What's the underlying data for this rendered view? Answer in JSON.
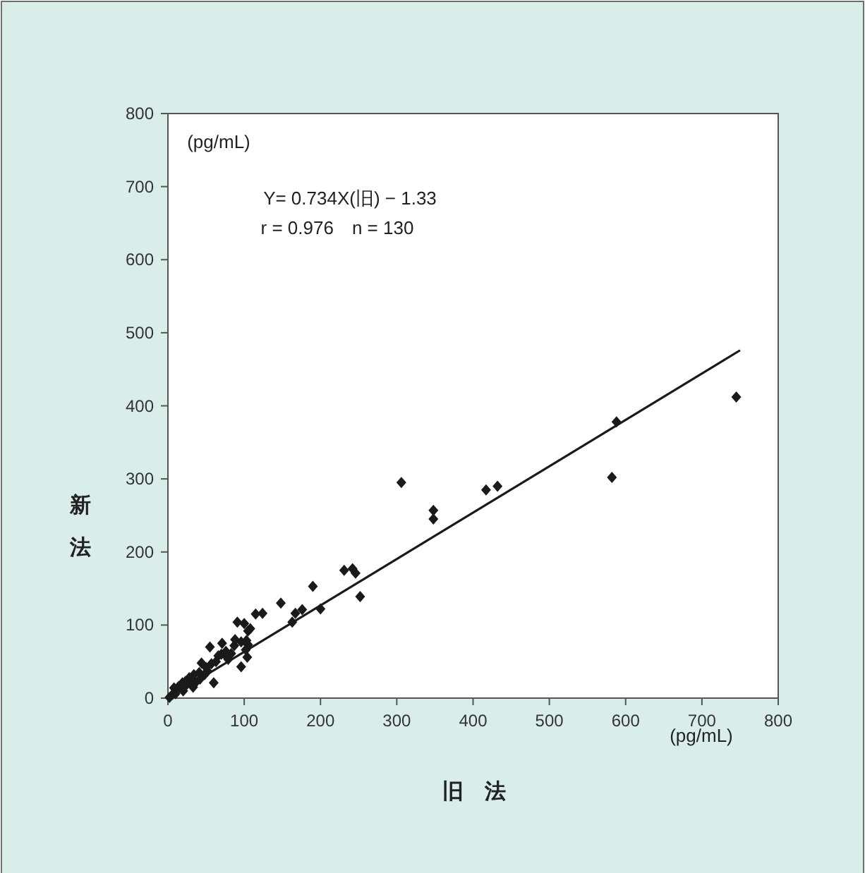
{
  "chart_data": {
    "type": "scatter",
    "xlabel": "旧　法",
    "ylabel": "新法",
    "annotations": [
      "(pg/mL)",
      "(pg/mL)",
      "Y= 0.734X(旧) − 1.33",
      "r = 0.976　n = 130"
    ],
    "xlim": [
      0,
      800
    ],
    "ylim": [
      0,
      800
    ],
    "xticks": [
      0,
      100,
      200,
      300,
      400,
      500,
      600,
      700,
      800
    ],
    "yticks": [
      0,
      100,
      200,
      300,
      400,
      500,
      600,
      700,
      800
    ],
    "marker": "diamond",
    "grid": false,
    "series": [
      {
        "color": "#1a1a1a",
        "x": [
          745,
          588,
          582,
          432,
          417,
          348,
          348,
          306,
          252,
          231,
          242,
          246,
          200,
          190,
          176,
          167,
          163,
          148,
          124,
          115,
          108,
          105,
          100,
          91,
          103,
          105,
          102,
          104,
          96,
          87,
          79,
          71,
          83,
          55,
          60,
          66,
          63,
          52,
          44,
          41,
          30,
          25,
          8,
          6,
          2,
          50,
          57,
          70,
          76,
          48,
          34,
          28,
          23,
          19,
          14,
          10,
          20,
          33,
          36,
          42,
          76,
          88,
          96
        ],
        "values": [
          412,
          378,
          302,
          290,
          285,
          257,
          245,
          295,
          139,
          175,
          177,
          171,
          122,
          153,
          121,
          116,
          104,
          130,
          116,
          115,
          95,
          92,
          102,
          104,
          79,
          73,
          66,
          56,
          43,
          72,
          53,
          75,
          61,
          70,
          21,
          58,
          50,
          37,
          48,
          35,
          26,
          19,
          14,
          5,
          1,
          42,
          47,
          60,
          58,
          32,
          32,
          28,
          23,
          21,
          16,
          6,
          10,
          15,
          21,
          26,
          64,
          80,
          77
        ]
      },
      {
        "type": "line",
        "color": "#1a1a1a",
        "marker": "none",
        "line_style": "solid",
        "x": [
          0,
          750
        ],
        "values": [
          0,
          476
        ]
      }
    ]
  }
}
